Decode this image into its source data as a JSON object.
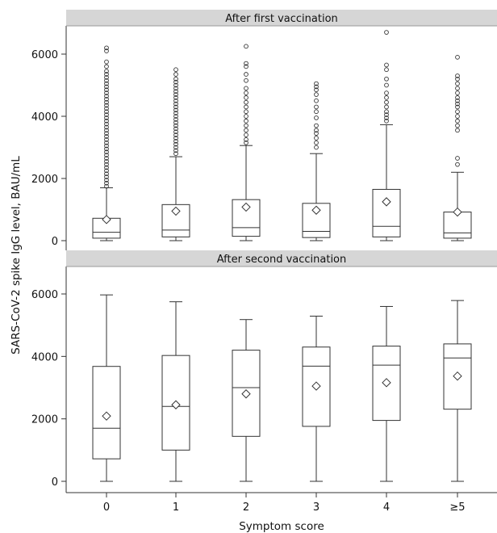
{
  "chart_data": {
    "type": "boxplot",
    "ylabel": "SARS-CoV-2 spike IgG level, BAU/mL",
    "xlabel": "Symptom score",
    "categories": [
      "0",
      "1",
      "2",
      "3",
      "4",
      "≥5"
    ],
    "y_ticks": [
      0,
      2000,
      4000,
      6000
    ],
    "y_tick_labels": [
      "0",
      "2000",
      "4000",
      "6000"
    ],
    "ylim": [
      -100,
      7000
    ],
    "grid": false,
    "panels": [
      {
        "title": "After first vaccination",
        "boxes": [
          {
            "category": "0",
            "min": 0,
            "q1": 80,
            "median": 270,
            "q3": 720,
            "max": 1700,
            "mean": 680
          },
          {
            "category": "1",
            "min": 0,
            "q1": 120,
            "median": 340,
            "q3": 1160,
            "max": 2700,
            "mean": 950
          },
          {
            "category": "2",
            "min": 0,
            "q1": 140,
            "median": 420,
            "q3": 1320,
            "max": 3060,
            "mean": 1080
          },
          {
            "category": "3",
            "min": 0,
            "q1": 100,
            "median": 300,
            "q3": 1200,
            "max": 2800,
            "mean": 980
          },
          {
            "category": "4",
            "min": 0,
            "q1": 120,
            "median": 460,
            "q3": 1650,
            "max": 3730,
            "mean": 1250
          },
          {
            "category": "≥5",
            "min": 0,
            "q1": 80,
            "median": 250,
            "q3": 920,
            "max": 2200,
            "mean": 920
          }
        ],
        "outliers": [
          {
            "category": "0",
            "values": [
              1750,
              1850,
              1950,
              2050,
              2150,
              2250,
              2350,
              2450,
              2550,
              2650,
              2750,
              2850,
              2950,
              3050,
              3150,
              3250,
              3350,
              3450,
              3550,
              3650,
              3750,
              3850,
              3950,
              4050,
              4150,
              4250,
              4350,
              4450,
              4550,
              4650,
              4750,
              4850,
              4950,
              5050,
              5150,
              5250,
              5350,
              5450,
              5600,
              5750,
              6100,
              6200
            ]
          },
          {
            "category": "1",
            "values": [
              2800,
              2900,
              3000,
              3100,
              3200,
              3300,
              3400,
              3500,
              3600,
              3700,
              3800,
              3900,
              4000,
              4100,
              4200,
              4300,
              4400,
              4500,
              4600,
              4700,
              4800,
              4900,
              5000,
              5100,
              5200,
              5350,
              5500
            ]
          },
          {
            "category": "2",
            "values": [
              3150,
              3250,
              3400,
              3550,
              3700,
              3850,
              4000,
              4150,
              4300,
              4450,
              4600,
              4750,
              4900,
              5150,
              5350,
              5600,
              5700,
              6250
            ]
          },
          {
            "category": "3",
            "values": [
              3000,
              3150,
              3300,
              3450,
              3550,
              3700,
              3950,
              4150,
              4300,
              4500,
              4700,
              4850,
              4950,
              5050
            ]
          },
          {
            "category": "4",
            "values": [
              3850,
              3950,
              4050,
              4150,
              4300,
              4450,
              4600,
              4750,
              5000,
              5200,
              5500,
              5650,
              6700
            ]
          },
          {
            "category": "≥5",
            "values": [
              2450,
              2650,
              3550,
              3700,
              3850,
              4000,
              4150,
              4300,
              4400,
              4500,
              4600,
              4750,
              4900,
              5050,
              5200,
              5300,
              5900
            ]
          }
        ]
      },
      {
        "title": "After second vaccination",
        "boxes": [
          {
            "category": "0",
            "min": 0,
            "q1": 720,
            "median": 1700,
            "q3": 3680,
            "max": 5970,
            "mean": 2090
          },
          {
            "category": "1",
            "min": 0,
            "q1": 1000,
            "median": 2400,
            "q3": 4030,
            "max": 5750,
            "mean": 2450
          },
          {
            "category": "2",
            "min": 0,
            "q1": 1440,
            "median": 3000,
            "q3": 4200,
            "max": 5180,
            "mean": 2800
          },
          {
            "category": "3",
            "min": 0,
            "q1": 1760,
            "median": 3690,
            "q3": 4300,
            "max": 5290,
            "mean": 3050
          },
          {
            "category": "4",
            "min": 0,
            "q1": 1950,
            "median": 3720,
            "q3": 4330,
            "max": 5600,
            "mean": 3160
          },
          {
            "category": "≥5",
            "min": 0,
            "q1": 2310,
            "median": 3950,
            "q3": 4400,
            "max": 5790,
            "mean": 3370
          }
        ],
        "outliers": []
      }
    ]
  }
}
